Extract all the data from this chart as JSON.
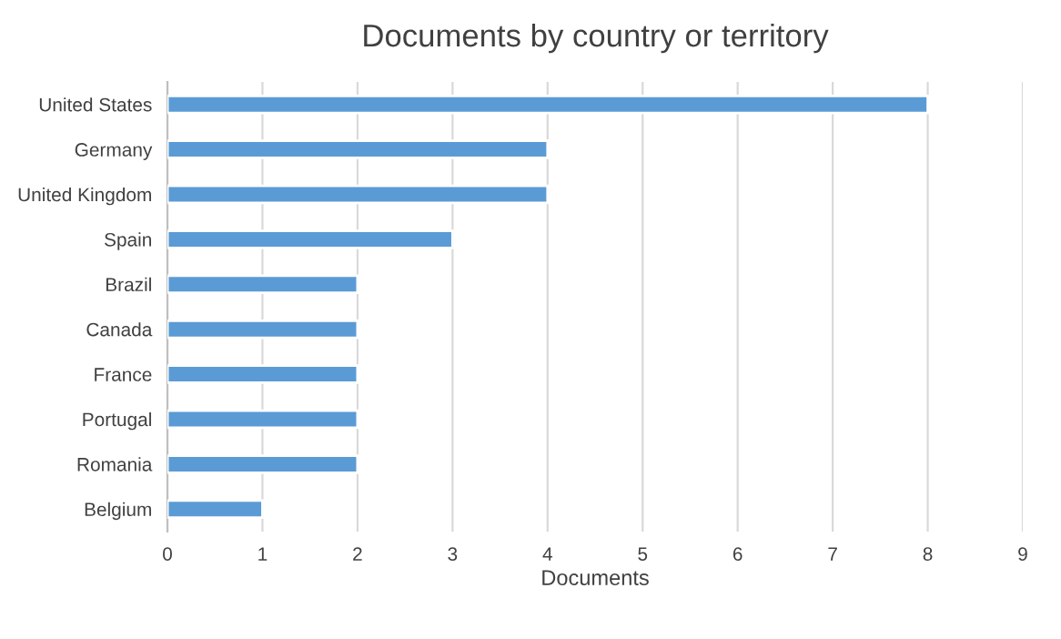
{
  "chart_data": {
    "type": "bar",
    "orientation": "horizontal",
    "title": "Documents by country or territory",
    "xlabel": "Documents",
    "categories": [
      "United States",
      "Germany",
      "United Kingdom",
      "Spain",
      "Brazil",
      "Canada",
      "France",
      "Portugal",
      "Romania",
      "Belgium"
    ],
    "values": [
      8,
      4,
      4,
      3,
      2,
      2,
      2,
      2,
      2,
      1
    ],
    "color": "#5b9bd5",
    "xlim": [
      0,
      9
    ],
    "xticks": [
      0,
      1,
      2,
      3,
      4,
      5,
      6,
      7,
      8,
      9
    ],
    "grid": "x",
    "legend": false
  }
}
